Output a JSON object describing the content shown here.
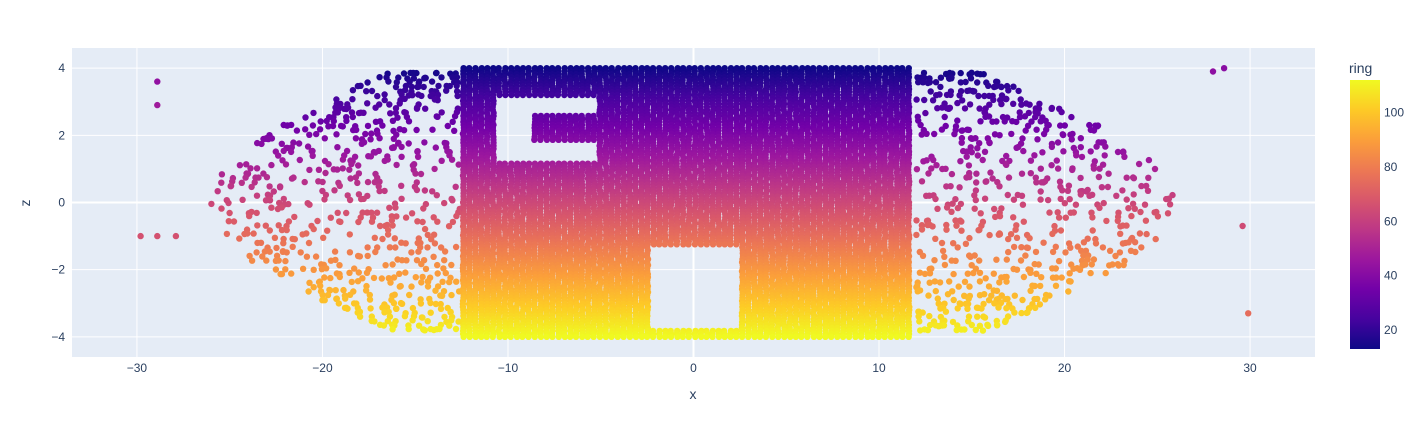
{
  "chart_data": {
    "type": "scatter",
    "title": "",
    "xlabel": "x",
    "ylabel": "z",
    "xlim": [
      -33.5,
      33.5
    ],
    "ylim": [
      -4.6,
      4.6
    ],
    "x_ticks": [
      -30,
      -20,
      -10,
      0,
      10,
      20,
      30
    ],
    "x_tick_labels": [
      "−30",
      "−20",
      "−10",
      "0",
      "10",
      "20",
      "30"
    ],
    "y_ticks": [
      -4,
      -2,
      0,
      2,
      4
    ],
    "y_tick_labels": [
      "−4",
      "−2",
      "0",
      "2",
      "4"
    ],
    "grid": true,
    "colorbar": {
      "title": "ring",
      "range": [
        13,
        112
      ],
      "ticks": [
        20,
        40,
        60,
        80,
        100
      ],
      "tick_labels": [
        "20",
        "40",
        "60",
        "80",
        "100"
      ],
      "colorscale": [
        "#0d0887",
        "#46039f",
        "#7201a8",
        "#9c179e",
        "#bd3786",
        "#d8576b",
        "#ed7953",
        "#fb9f3a",
        "#fdca26",
        "#f0f921"
      ]
    },
    "points_description": {
      "marker_color_field": "ring",
      "dense_core_x_range": [
        -12,
        12
      ],
      "z_range": [
        -4,
        4
      ],
      "ring_min_at_top": 13,
      "ring_max_at_bottom": 112,
      "sparse_outer_points": [
        {
          "x": -29.8,
          "z": -1.0,
          "ring": 66
        },
        {
          "x": -28.9,
          "z": -1.0,
          "ring": 66
        },
        {
          "x": -27.9,
          "z": -1.0,
          "ring": 66
        },
        {
          "x": -28.9,
          "z": 3.6,
          "ring": 43
        },
        {
          "x": -28.9,
          "z": 2.9,
          "ring": 47
        },
        {
          "x": 29.6,
          "z": -0.7,
          "ring": 64
        },
        {
          "x": 29.9,
          "z": -3.3,
          "ring": 75
        },
        {
          "x": 28.6,
          "z": 4.0,
          "ring": 41
        },
        {
          "x": 28.0,
          "z": 3.9,
          "ring": 42
        }
      ]
    }
  },
  "colors": {
    "plot_bg": "#e5ecf6",
    "grid": "#ffffff",
    "tick_text": "#2a3f5f",
    "axis_title": "#2a3f5f"
  }
}
